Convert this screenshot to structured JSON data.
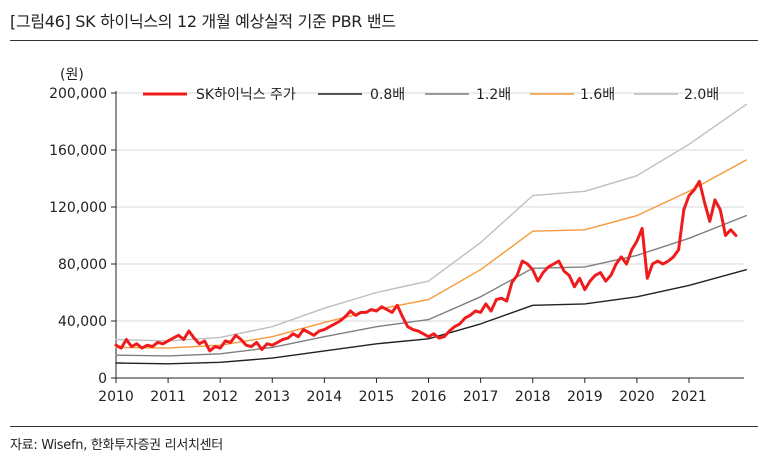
{
  "header": {
    "title": "[그림46]  SK 하이닉스의 12 개월 예상실적 기준 PBR 밴드"
  },
  "footer": {
    "source": "자료: Wisefn, 한화투자증권 리서치센터"
  },
  "chart_data": {
    "type": "line",
    "title": "[그림46]  SK 하이닉스의 12 개월 예상실적 기준 PBR 밴드",
    "unit_label": "(원)",
    "xlim": [
      2010,
      2022.1
    ],
    "ylim": [
      0,
      200000
    ],
    "x_ticks": [
      2010,
      2011,
      2012,
      2013,
      2014,
      2015,
      2016,
      2017,
      2018,
      2019,
      2020,
      2021
    ],
    "y_ticks": [
      0,
      40000,
      80000,
      120000,
      160000,
      200000
    ],
    "y_tick_labels": [
      "0",
      "40,000",
      "80,000",
      "120,000",
      "160,000",
      "200,000"
    ],
    "grid": "horizontal",
    "legend_position": "top",
    "series": [
      {
        "name": "SK하이닉스  주가",
        "color": "#ee1c1c",
        "x": [
          2010.0,
          2010.1,
          2010.2,
          2010.3,
          2010.4,
          2010.5,
          2010.6,
          2010.7,
          2010.8,
          2010.9,
          2011.0,
          2011.1,
          2011.2,
          2011.3,
          2011.4,
          2011.5,
          2011.6,
          2011.7,
          2011.8,
          2011.9,
          2012.0,
          2012.1,
          2012.2,
          2012.3,
          2012.4,
          2012.5,
          2012.6,
          2012.7,
          2012.8,
          2012.9,
          2013.0,
          2013.1,
          2013.2,
          2013.3,
          2013.4,
          2013.5,
          2013.6,
          2013.7,
          2013.8,
          2013.9,
          2014.0,
          2014.1,
          2014.2,
          2014.3,
          2014.4,
          2014.5,
          2014.6,
          2014.7,
          2014.8,
          2014.9,
          2015.0,
          2015.1,
          2015.2,
          2015.3,
          2015.4,
          2015.5,
          2015.6,
          2015.7,
          2015.8,
          2015.9,
          2016.0,
          2016.1,
          2016.2,
          2016.3,
          2016.4,
          2016.5,
          2016.6,
          2016.7,
          2016.8,
          2016.9,
          2017.0,
          2017.1,
          2017.2,
          2017.3,
          2017.4,
          2017.5,
          2017.6,
          2017.7,
          2017.8,
          2017.9,
          2018.0,
          2018.1,
          2018.2,
          2018.3,
          2018.4,
          2018.5,
          2018.6,
          2018.7,
          2018.8,
          2018.9,
          2019.0,
          2019.1,
          2019.2,
          2019.3,
          2019.4,
          2019.5,
          2019.6,
          2019.7,
          2019.8,
          2019.9,
          2020.0,
          2020.1,
          2020.2,
          2020.3,
          2020.4,
          2020.5,
          2020.6,
          2020.7,
          2020.8,
          2020.9,
          2021.0,
          2021.1,
          2021.2,
          2021.3,
          2021.4,
          2021.5,
          2021.6,
          2021.7,
          2021.8,
          2021.9
        ],
        "y": [
          23000,
          21000,
          27000,
          22000,
          24000,
          21000,
          23000,
          22000,
          25000,
          24000,
          26000,
          28000,
          30000,
          27000,
          33000,
          28000,
          24000,
          26000,
          19000,
          22000,
          21000,
          26000,
          25000,
          30000,
          27000,
          23000,
          22000,
          25000,
          20000,
          24000,
          23000,
          25000,
          27000,
          28000,
          31000,
          29000,
          34000,
          32000,
          30000,
          33000,
          34000,
          36000,
          38000,
          40000,
          43000,
          47000,
          44000,
          46000,
          46000,
          48000,
          47000,
          50000,
          48000,
          46000,
          51000,
          43000,
          36000,
          34000,
          33000,
          31000,
          29000,
          31000,
          28000,
          29000,
          33000,
          36000,
          38000,
          42000,
          44000,
          47000,
          46000,
          52000,
          47000,
          55000,
          56000,
          54000,
          67000,
          72000,
          82000,
          80000,
          76000,
          68000,
          74000,
          78000,
          80000,
          82000,
          75000,
          72000,
          64000,
          70000,
          62000,
          68000,
          72000,
          74000,
          68000,
          72000,
          80000,
          85000,
          80000,
          90000,
          96000,
          105000,
          70000,
          80000,
          82000,
          80000,
          82000,
          85000,
          90000,
          118000,
          128000,
          132000,
          138000,
          123000,
          110000,
          125000,
          118000,
          100000,
          104000,
          100000
        ]
      },
      {
        "name": "0.8배",
        "color": "#222222",
        "x": [
          2010,
          2011,
          2012,
          2013,
          2014,
          2015,
          2016,
          2017,
          2018,
          2019,
          2020,
          2021,
          2022.1
        ],
        "y": [
          10500,
          10000,
          11000,
          14000,
          19000,
          24000,
          27500,
          38000,
          51000,
          52000,
          57000,
          65000,
          76000
        ]
      },
      {
        "name": "1.2배",
        "color": "#7f7f7f",
        "x": [
          2010,
          2011,
          2012,
          2013,
          2014,
          2015,
          2016,
          2017,
          2018,
          2019,
          2020,
          2021,
          2022.1
        ],
        "y": [
          16000,
          15500,
          17000,
          21500,
          29000,
          36000,
          41000,
          57000,
          77000,
          78000,
          86000,
          98000,
          114000
        ]
      },
      {
        "name": "1.6배",
        "color": "#f59a3c",
        "x": [
          2010,
          2011,
          2012,
          2013,
          2014,
          2015,
          2016,
          2017,
          2018,
          2019,
          2020,
          2021,
          2022.1
        ],
        "y": [
          21500,
          21000,
          23000,
          29000,
          39000,
          48000,
          55000,
          76000,
          103000,
          104000,
          114000,
          131000,
          153000
        ]
      },
      {
        "name": "2.0배",
        "color": "#bfbfbf",
        "x": [
          2010,
          2011,
          2012,
          2013,
          2014,
          2015,
          2016,
          2017,
          2018,
          2019,
          2020,
          2021,
          2022.1
        ],
        "y": [
          27000,
          26000,
          28500,
          36000,
          49000,
          60000,
          68000,
          95000,
          128000,
          131000,
          142000,
          164000,
          192000
        ]
      }
    ]
  }
}
